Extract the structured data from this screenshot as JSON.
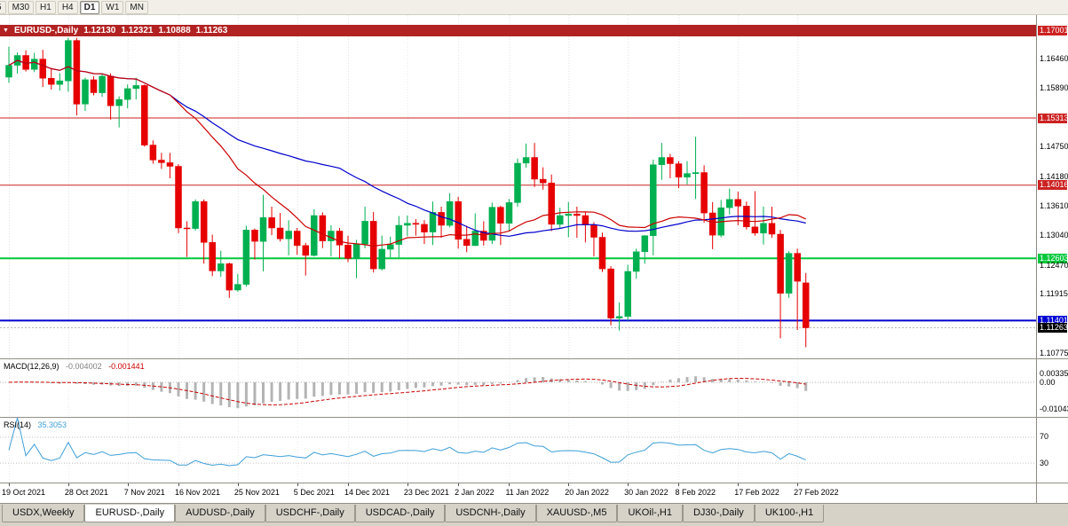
{
  "colors": {
    "up": "#00b050",
    "down": "#e60000",
    "ma_fast": "#cc0000",
    "ma_slow": "#0000cc",
    "level_red": "#cc2222",
    "level_green": "#00c83c",
    "level_blue": "#0000d2",
    "bid_label_bg": "#000000",
    "macd_histogram": "#b4b4b4",
    "macd_signal": "#cc0000",
    "rsi_line": "#3d9fd8",
    "titlebar_bg": "#b22222",
    "grid": "#e4e4e4"
  },
  "toolbar": {
    "timeframes": [
      {
        "label": "5",
        "active": false
      },
      {
        "label": "M30",
        "active": false
      },
      {
        "label": "H1",
        "active": false
      },
      {
        "label": "H4",
        "active": false
      },
      {
        "label": "D1",
        "active": true
      },
      {
        "label": "W1",
        "active": false
      },
      {
        "label": "MN",
        "active": false
      }
    ]
  },
  "chart": {
    "title": {
      "symbol_period": "EURUSD-,Daily",
      "open": "1.12130",
      "high": "1.12321",
      "low": "1.10888",
      "close": "1.11263"
    },
    "bid": 1.11263
  },
  "macd": {
    "name": "MACD(12,26,9)",
    "main_value": "-0.004002",
    "signal_value": "-0.001441",
    "scale": [
      "0.00335",
      "0.00",
      "-0.01043"
    ]
  },
  "rsi": {
    "name": "RSI(14)",
    "value": "35.3053",
    "scale": [
      {
        "text": "70",
        "value": 70
      },
      {
        "text": "30",
        "value": 30
      }
    ],
    "levels": [
      70,
      30
    ]
  },
  "tabs": [
    {
      "label": "USDX,Weekly",
      "active": false
    },
    {
      "label": "EURUSD-,Daily",
      "active": true
    },
    {
      "label": "AUDUSD-,Daily",
      "active": false
    },
    {
      "label": "USDCHF-,Daily",
      "active": false
    },
    {
      "label": "USDCAD-,Daily",
      "active": false
    },
    {
      "label": "USDCNH-,Daily",
      "active": false
    },
    {
      "label": "XAUUSD-,M5",
      "active": false
    },
    {
      "label": "UKOil-,H1",
      "active": false
    },
    {
      "label": "DJ30-,Daily",
      "active": false
    },
    {
      "label": "UK100-,H1",
      "active": false
    }
  ],
  "chart_data": {
    "type": "candlestick",
    "symbol": "EURUSD-",
    "timeframe": "Daily",
    "y_axis": {
      "min": 1.10672,
      "max": 1.17105
    },
    "price_scale": [
      {
        "text": "1.17001",
        "style": "red"
      },
      {
        "text": "1.16460",
        "style": "plain"
      },
      {
        "text": "1.15890",
        "style": "plain"
      },
      {
        "text": "1.15313",
        "style": "red"
      },
      {
        "text": "1.14750",
        "style": "plain"
      },
      {
        "text": "1.14180",
        "style": "plain"
      },
      {
        "text": "1.14016",
        "style": "red"
      },
      {
        "text": "1.13610",
        "style": "plain"
      },
      {
        "text": "1.13040",
        "style": "plain"
      },
      {
        "text": "1.12603",
        "style": "green"
      },
      {
        "text": "1.12470",
        "style": "plain"
      },
      {
        "text": "1.11915",
        "style": "plain"
      },
      {
        "text": "1.11401",
        "style": "blue"
      },
      {
        "text": "1.11263",
        "style": "bid"
      },
      {
        "text": "1.10775",
        "style": "plain"
      }
    ],
    "horizontal_levels": [
      {
        "price": 1.17001,
        "style": "red",
        "width": 1
      },
      {
        "price": 1.15313,
        "style": "red",
        "width": 1
      },
      {
        "price": 1.14016,
        "style": "red",
        "width": 1
      },
      {
        "price": 1.12603,
        "style": "green",
        "width": 2
      },
      {
        "price": 1.11401,
        "style": "blue",
        "width": 2
      }
    ],
    "overlays": [
      {
        "name": "ma-fast",
        "period": 20,
        "color_key": "ma_fast"
      },
      {
        "name": "ma-slow",
        "period": 40,
        "color_key": "ma_slow"
      }
    ],
    "x_ticks": [
      {
        "i": 0,
        "label": "19 Oct 2021"
      },
      {
        "i": 7,
        "label": "28 Oct 2021"
      },
      {
        "i": 14,
        "label": "7 Nov 2021"
      },
      {
        "i": 20,
        "label": "16 Nov 2021"
      },
      {
        "i": 27,
        "label": "25 Nov 2021"
      },
      {
        "i": 34,
        "label": "5 Dec 2021"
      },
      {
        "i": 40,
        "label": "14 Dec 2021"
      },
      {
        "i": 47,
        "label": "23 Dec 2021"
      },
      {
        "i": 53,
        "label": "2 Jan 2022"
      },
      {
        "i": 59,
        "label": "11 Jan 2022"
      },
      {
        "i": 66,
        "label": "20 Jan 2022"
      },
      {
        "i": 73,
        "label": "30 Jan 2022"
      },
      {
        "i": 79,
        "label": "8 Feb 2022"
      },
      {
        "i": 86,
        "label": "17 Feb 2022"
      },
      {
        "i": 93,
        "label": "27 Feb 2022"
      }
    ],
    "ohlc": [
      [
        "2021-10-19",
        1.161,
        1.1669,
        1.1599,
        1.1633
      ],
      [
        "2021-10-20",
        1.1633,
        1.1658,
        1.1617,
        1.1652
      ],
      [
        "2021-10-21",
        1.1652,
        1.1662,
        1.1621,
        1.1625
      ],
      [
        "2021-10-22",
        1.1625,
        1.1657,
        1.162,
        1.1645
      ],
      [
        "2021-10-25",
        1.1645,
        1.1663,
        1.1591,
        1.1608
      ],
      [
        "2021-10-26",
        1.1608,
        1.1627,
        1.1586,
        1.1596
      ],
      [
        "2021-10-27",
        1.1596,
        1.1618,
        1.1584,
        1.1603
      ],
      [
        "2021-10-28",
        1.1603,
        1.1686,
        1.1582,
        1.1681
      ],
      [
        "2021-10-29",
        1.1681,
        1.1686,
        1.1536,
        1.1558
      ],
      [
        "2021-11-01",
        1.1558,
        1.1609,
        1.1545,
        1.1605
      ],
      [
        "2021-11-02",
        1.1605,
        1.1612,
        1.1575,
        1.158
      ],
      [
        "2021-11-03",
        1.158,
        1.1617,
        1.1572,
        1.1612
      ],
      [
        "2021-11-04",
        1.1612,
        1.1617,
        1.1528,
        1.1555
      ],
      [
        "2021-11-05",
        1.1555,
        1.1573,
        1.1513,
        1.1567
      ],
      [
        "2021-11-08",
        1.1567,
        1.1596,
        1.155,
        1.1588
      ],
      [
        "2021-11-09",
        1.1588,
        1.1609,
        1.1567,
        1.1594
      ],
      [
        "2021-11-10",
        1.1594,
        1.1596,
        1.1476,
        1.1479
      ],
      [
        "2021-11-11",
        1.1479,
        1.1488,
        1.1443,
        1.145
      ],
      [
        "2021-11-12",
        1.145,
        1.1464,
        1.1433,
        1.1445
      ],
      [
        "2021-11-15",
        1.1445,
        1.1464,
        1.1415,
        1.1438
      ],
      [
        "2021-11-16",
        1.1438,
        1.1442,
        1.1309,
        1.1319
      ],
      [
        "2021-11-17",
        1.1319,
        1.1332,
        1.1263,
        1.1318
      ],
      [
        "2021-11-18",
        1.1318,
        1.1374,
        1.1314,
        1.137
      ],
      [
        "2021-11-19",
        1.137,
        1.1374,
        1.125,
        1.1291
      ],
      [
        "2021-11-22",
        1.1291,
        1.1306,
        1.1226,
        1.1236
      ],
      [
        "2021-11-23",
        1.1236,
        1.1275,
        1.1225,
        1.125
      ],
      [
        "2021-11-24",
        1.125,
        1.1252,
        1.1184,
        1.1199
      ],
      [
        "2021-11-25",
        1.1199,
        1.123,
        1.1196,
        1.121
      ],
      [
        "2021-11-26",
        1.121,
        1.1323,
        1.1206,
        1.1315
      ],
      [
        "2021-11-29",
        1.1315,
        1.1318,
        1.1258,
        1.1293
      ],
      [
        "2021-11-30",
        1.1293,
        1.1383,
        1.1235,
        1.1339
      ],
      [
        "2021-12-01",
        1.1339,
        1.136,
        1.1305,
        1.1319
      ],
      [
        "2021-12-02",
        1.1319,
        1.1348,
        1.1293,
        1.1298
      ],
      [
        "2021-12-03",
        1.1298,
        1.1334,
        1.1266,
        1.1313
      ],
      [
        "2021-12-06",
        1.1313,
        1.1319,
        1.1267,
        1.1285
      ],
      [
        "2021-12-07",
        1.1285,
        1.129,
        1.1227,
        1.1266
      ],
      [
        "2021-12-08",
        1.1266,
        1.1355,
        1.1264,
        1.1343
      ],
      [
        "2021-12-09",
        1.1343,
        1.1349,
        1.128,
        1.1294
      ],
      [
        "2021-12-10",
        1.1294,
        1.1324,
        1.1264,
        1.1313
      ],
      [
        "2021-12-13",
        1.1313,
        1.1319,
        1.126,
        1.1286
      ],
      [
        "2021-12-14",
        1.1286,
        1.1304,
        1.1253,
        1.126
      ],
      [
        "2021-12-15",
        1.126,
        1.1296,
        1.1222,
        1.1288
      ],
      [
        "2021-12-16",
        1.1288,
        1.136,
        1.128,
        1.1332
      ],
      [
        "2021-12-17",
        1.1332,
        1.135,
        1.1233,
        1.124
      ],
      [
        "2021-12-20",
        1.124,
        1.1304,
        1.1237,
        1.1278
      ],
      [
        "2021-12-21",
        1.1278,
        1.1302,
        1.1262,
        1.1287
      ],
      [
        "2021-12-22",
        1.1287,
        1.1342,
        1.1262,
        1.1324
      ],
      [
        "2021-12-23",
        1.1324,
        1.1343,
        1.1303,
        1.1328
      ],
      [
        "2021-12-27",
        1.1328,
        1.1336,
        1.1304,
        1.1326
      ],
      [
        "2021-12-28",
        1.1326,
        1.1334,
        1.1288,
        1.1311
      ],
      [
        "2021-12-29",
        1.1311,
        1.137,
        1.1286,
        1.1349
      ],
      [
        "2021-12-30",
        1.1349,
        1.136,
        1.13,
        1.1324
      ],
      [
        "2021-12-31",
        1.1324,
        1.1386,
        1.132,
        1.137
      ],
      [
        "2022-01-03",
        1.137,
        1.1379,
        1.1279,
        1.1297
      ],
      [
        "2022-01-04",
        1.1297,
        1.1323,
        1.1272,
        1.1285
      ],
      [
        "2022-01-05",
        1.1285,
        1.1347,
        1.1284,
        1.1313
      ],
      [
        "2022-01-06",
        1.1313,
        1.1332,
        1.1285,
        1.1295
      ],
      [
        "2022-01-07",
        1.1295,
        1.1368,
        1.1288,
        1.1359
      ],
      [
        "2022-01-10",
        1.1359,
        1.1362,
        1.1286,
        1.1328
      ],
      [
        "2022-01-11",
        1.1328,
        1.1375,
        1.1314,
        1.1368
      ],
      [
        "2022-01-12",
        1.1368,
        1.1453,
        1.136,
        1.1444
      ],
      [
        "2022-01-13",
        1.1444,
        1.1482,
        1.1435,
        1.1455
      ],
      [
        "2022-01-14",
        1.1455,
        1.1483,
        1.1398,
        1.1413
      ],
      [
        "2022-01-17",
        1.1413,
        1.1436,
        1.1393,
        1.1406
      ],
      [
        "2022-01-18",
        1.1406,
        1.1422,
        1.1313,
        1.1326
      ],
      [
        "2022-01-19",
        1.1326,
        1.1358,
        1.1318,
        1.1343
      ],
      [
        "2022-01-20",
        1.1343,
        1.1369,
        1.1301,
        1.1346
      ],
      [
        "2022-01-21",
        1.1346,
        1.136,
        1.13,
        1.1343
      ],
      [
        "2022-01-24",
        1.1343,
        1.1349,
        1.1291,
        1.1325
      ],
      [
        "2022-01-25",
        1.1325,
        1.133,
        1.1264,
        1.1301
      ],
      [
        "2022-01-26",
        1.1301,
        1.131,
        1.1234,
        1.124
      ],
      [
        "2022-01-27",
        1.124,
        1.1245,
        1.1131,
        1.1145
      ],
      [
        "2022-01-28",
        1.1145,
        1.1175,
        1.1121,
        1.1148
      ],
      [
        "2022-01-31",
        1.1148,
        1.1248,
        1.114,
        1.1235
      ],
      [
        "2022-02-01",
        1.1235,
        1.1279,
        1.1221,
        1.1273
      ],
      [
        "2022-02-02",
        1.1273,
        1.1305,
        1.125,
        1.1304
      ],
      [
        "2022-02-03",
        1.1304,
        1.1451,
        1.1266,
        1.1441
      ],
      [
        "2022-02-04",
        1.1441,
        1.1483,
        1.1412,
        1.1455
      ],
      [
        "2022-02-07",
        1.1455,
        1.1462,
        1.1415,
        1.1443
      ],
      [
        "2022-02-08",
        1.1443,
        1.1448,
        1.1396,
        1.1417
      ],
      [
        "2022-02-09",
        1.1417,
        1.1448,
        1.1403,
        1.1424
      ],
      [
        "2022-02-10",
        1.1424,
        1.1495,
        1.1375,
        1.1426
      ],
      [
        "2022-02-11",
        1.1426,
        1.144,
        1.1329,
        1.1348
      ],
      [
        "2022-02-14",
        1.1348,
        1.1369,
        1.1278,
        1.1305
      ],
      [
        "2022-02-15",
        1.1305,
        1.1373,
        1.1301,
        1.1358
      ],
      [
        "2022-02-16",
        1.1358,
        1.1395,
        1.1345,
        1.1374
      ],
      [
        "2022-02-17",
        1.1374,
        1.1389,
        1.1324,
        1.1361
      ],
      [
        "2022-02-18",
        1.1361,
        1.137,
        1.1316,
        1.1321
      ],
      [
        "2022-02-21",
        1.1321,
        1.139,
        1.1304,
        1.1309
      ],
      [
        "2022-02-22",
        1.1309,
        1.136,
        1.1287,
        1.1328
      ],
      [
        "2022-02-23",
        1.1328,
        1.136,
        1.13,
        1.1307
      ],
      [
        "2022-02-24",
        1.1307,
        1.1315,
        1.1106,
        1.1193
      ],
      [
        "2022-02-25",
        1.1193,
        1.1274,
        1.1184,
        1.127
      ],
      [
        "2022-02-28",
        1.127,
        1.1279,
        1.1122,
        1.1216
      ],
      [
        "2022-03-01",
        1.1213,
        1.12321,
        1.10888,
        1.11263
      ]
    ],
    "indicators": [
      {
        "type": "macd",
        "params": [
          12,
          26,
          9
        ],
        "main_value": -0.004002,
        "signal_value": -0.001441,
        "scale_marks": [
          0.00335,
          0.0,
          -0.01043
        ]
      },
      {
        "type": "rsi",
        "params": [
          14
        ],
        "value": 35.3053,
        "levels": [
          70,
          30
        ]
      }
    ]
  }
}
